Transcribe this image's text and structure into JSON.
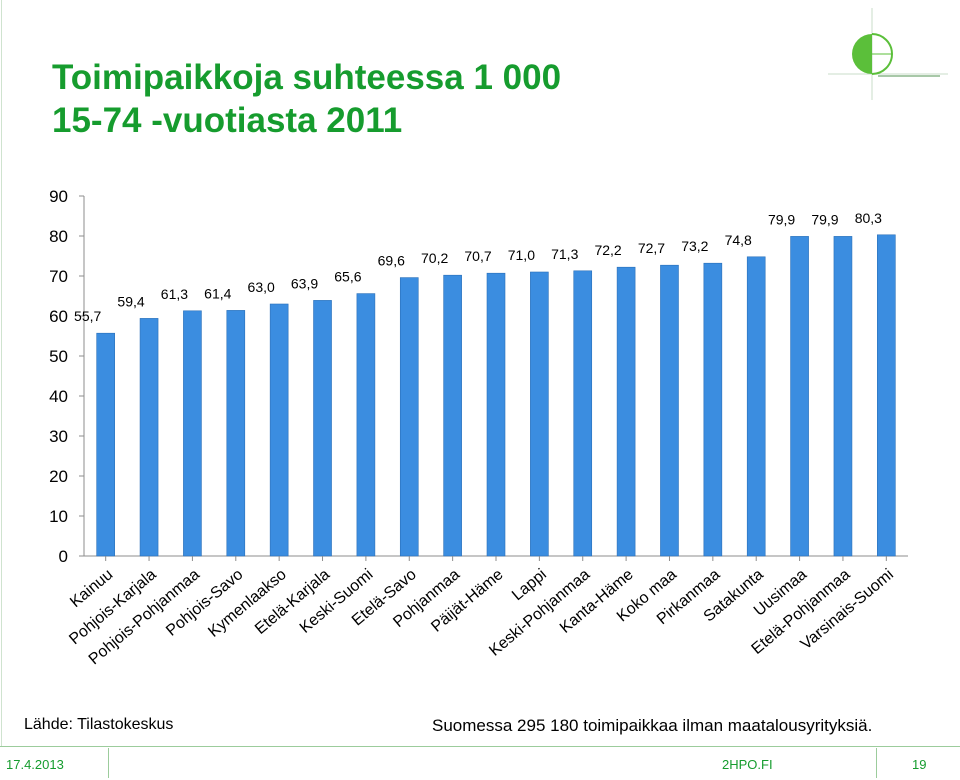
{
  "title": {
    "line1": "Toimipaikkoja suhteessa 1 000",
    "line2": "15-74 -vuotiasta 2011"
  },
  "colors": {
    "title": "#169c2e",
    "bar": "#3b8de0",
    "bar_edge": "#2a6fb8"
  },
  "chart_data": {
    "type": "bar",
    "categories": [
      "Kainuu",
      "Pohjois-Karjala",
      "Pohjois-Pohjanmaa",
      "Pohjois-Savo",
      "Kymenlaakso",
      "Etelä-Karjala",
      "Keski-Suomi",
      "Etelä-Savo",
      "Pohjanmaa",
      "Päijät-Häme",
      "Lappi",
      "Keski-Pohjanmaa",
      "Kanta-Häme",
      "Koko maa",
      "Pirkanmaa",
      "Satakunta",
      "Uusimaa",
      "Etelä-Pohjanmaa",
      "Varsinais-Suomi"
    ],
    "values": [
      55.7,
      59.4,
      61.3,
      61.4,
      63.0,
      63.9,
      65.6,
      69.6,
      70.2,
      70.7,
      71.0,
      71.3,
      72.2,
      72.7,
      73.2,
      74.8,
      79.9,
      79.9,
      80.3
    ],
    "value_labels": [
      "55,7",
      "59,4",
      "61,3",
      "61,4",
      "63,0",
      "63,9",
      "65,6",
      "69,6",
      "70,2",
      "70,7",
      "71,0",
      "71,3",
      "72,2",
      "72,7",
      "73,2",
      "74,8",
      "79,9",
      "79,9",
      "80,3"
    ],
    "yticks": [
      "0",
      "10",
      "20",
      "30",
      "40",
      "50",
      "60",
      "70",
      "80",
      "90"
    ],
    "ylim": [
      0,
      90
    ],
    "grid": false,
    "legend": "none"
  },
  "source": "Lähde: Tilastokeskus",
  "note": "Suomessa 295 180 toimipaikkaa ilman maatalousyrityksiä.",
  "footer": {
    "date": "17.4.2013",
    "site": "2HPO.FI",
    "page": "19"
  }
}
